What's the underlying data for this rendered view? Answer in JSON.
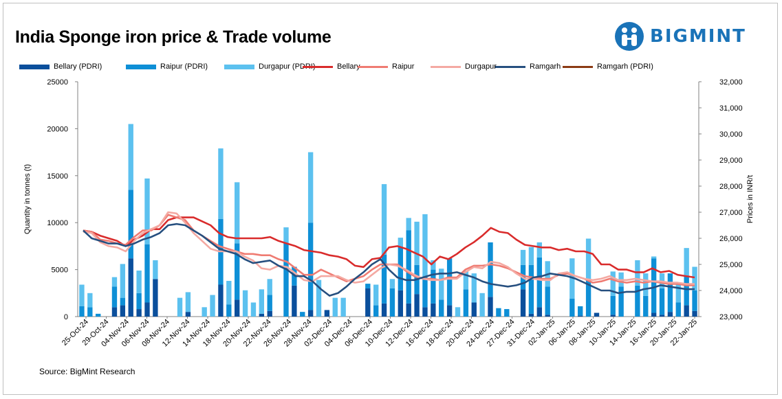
{
  "title": "India Sponge iron price & Trade volume",
  "brand": "BIGMINT",
  "source": "Source: BigMint Research",
  "chart_data": {
    "type": "bar+line",
    "title": "India Sponge iron price & Trade volume",
    "ylabel": "Quantity in tonnes (t)",
    "y2label": "Prices in INR/t",
    "ylim": [
      0,
      25000
    ],
    "y2lim": [
      23000,
      32000
    ],
    "y_ticks": [
      "0",
      "5000",
      "10000",
      "15000",
      "20000",
      "25000"
    ],
    "y2_ticks": [
      "23,000",
      "24,000",
      "25,000",
      "26,000",
      "27,000",
      "28,000",
      "29,000",
      "30,000",
      "31,000",
      "32,000"
    ],
    "x_tick_labels": [
      "25-Oct-24",
      "29-Oct-24",
      "04-Nov-24",
      "06-Nov-24",
      "08-Nov-24",
      "12-Nov-24",
      "14-Nov-24",
      "18-Nov-24",
      "20-Nov-24",
      "22-Nov-24",
      "26-Nov-24",
      "28-Nov-24",
      "02-Dec-24",
      "04-Dec-24",
      "06-Dec-24",
      "10-Dec-24",
      "12-Dec-24",
      "16-Dec-24",
      "18-Dec-24",
      "20-Dec-24",
      "24-Dec-24",
      "27-Dec-24",
      "31-Dec-24",
      "02-Jan-25",
      "06-Jan-25",
      "08-Jan-25",
      "10-Jan-25",
      "14-Jan-25",
      "16-Jan-25",
      "20-Jan-25",
      "22-Jan-25"
    ],
    "bar_series": [
      {
        "name": "Bellary (PDRI)",
        "color": "#0b4f9c",
        "values": [
          0,
          0,
          0,
          0,
          1000,
          1200,
          6200,
          800,
          1500,
          4000,
          0,
          0,
          0,
          500,
          0,
          0,
          0,
          3400,
          0,
          1800,
          0,
          0,
          300,
          600,
          0,
          0,
          3300,
          0,
          700,
          0,
          700,
          0,
          0,
          0,
          0,
          3000,
          0,
          1400,
          0,
          2800,
          1400,
          2400,
          1000,
          1400,
          0,
          1200,
          0,
          0,
          1500,
          0,
          2100,
          0,
          0,
          0,
          2900,
          300,
          1000,
          200,
          0,
          0,
          0,
          100,
          0,
          400,
          0,
          200,
          0,
          0,
          0,
          0,
          400,
          200,
          500,
          0,
          1200,
          600
        ]
      },
      {
        "name": "Raipur (PDRI)",
        "color": "#0e8fd6",
        "values": [
          1100,
          1000,
          300,
          0,
          2200,
          800,
          7300,
          1700,
          6200,
          0,
          0,
          0,
          0,
          0,
          0,
          0,
          0,
          7000,
          1300,
          6000,
          0,
          0,
          0,
          1700,
          0,
          7800,
          2000,
          500,
          9300,
          0,
          0,
          0,
          0,
          0,
          0,
          500,
          1200,
          5200,
          3000,
          4600,
          7800,
          3100,
          3200,
          3600,
          1800,
          5000,
          0,
          2900,
          0,
          0,
          5800,
          900,
          800,
          0,
          2600,
          5200,
          5300,
          3000,
          0,
          0,
          1900,
          1000,
          4000,
          0,
          0,
          2000,
          3200,
          0,
          3300,
          2200,
          5800,
          2800,
          4100,
          1500,
          3100,
          2200
        ]
      },
      {
        "name": "Durgapur (PDRI)",
        "color": "#5cc1ef",
        "values": [
          2300,
          1500,
          0,
          0,
          1000,
          3600,
          7000,
          2400,
          7000,
          2000,
          0,
          0,
          2000,
          2100,
          0,
          1000,
          2300,
          7500,
          2500,
          6500,
          2800,
          1500,
          2600,
          1700,
          0,
          1700,
          0,
          0,
          7500,
          3900,
          0,
          2000,
          2000,
          0,
          0,
          0,
          2200,
          7500,
          1000,
          1000,
          1300,
          4600,
          6700,
          1000,
          3300,
          0,
          1000,
          2000,
          3100,
          2500,
          0,
          0,
          0,
          0,
          1600,
          1900,
          1600,
          2700,
          0,
          0,
          4300,
          0,
          4300,
          0,
          0,
          2600,
          1500,
          0,
          2700,
          2400,
          200,
          1600,
          0,
          2000,
          3000,
          2500
        ]
      }
    ],
    "line_series": [
      {
        "name": "Bellary",
        "color": "#d92b2b",
        "values": [
          26300,
          26250,
          26100,
          26000,
          25900,
          25700,
          25950,
          26100,
          26350,
          26350,
          26700,
          26800,
          26800,
          26800,
          26650,
          26500,
          26200,
          26050,
          26000,
          26000,
          26000,
          26000,
          26050,
          25900,
          25800,
          25700,
          25550,
          25500,
          25450,
          25350,
          25300,
          25200,
          24950,
          24900,
          25200,
          25250,
          25650,
          25700,
          25600,
          25450,
          25300,
          25000,
          25300,
          25200,
          25400,
          25650,
          25850,
          26100,
          26400,
          26250,
          26200,
          25950,
          25750,
          25700,
          25650,
          25650,
          25550,
          25600,
          25500,
          25500,
          25400,
          25000,
          25000,
          24800,
          24800,
          24700,
          24700,
          24850,
          24700,
          24750,
          24600,
          24550,
          24500
        ]
      },
      {
        "name": "Raipur",
        "color": "#ef7b72",
        "values": [
          26300,
          26250,
          25950,
          25900,
          25800,
          25750,
          26050,
          26300,
          26300,
          26500,
          26900,
          26800,
          26700,
          26300,
          26100,
          25900,
          25700,
          25600,
          25500,
          25400,
          25400,
          25350,
          25350,
          25200,
          25100,
          24850,
          24600,
          24600,
          24800,
          24650,
          24500,
          24350,
          24450,
          24550,
          24800,
          25000,
          25000,
          25000,
          24750,
          24550,
          24450,
          24450,
          24400,
          24500,
          24500,
          24800,
          24950,
          24950,
          25000,
          24950,
          24850,
          24700,
          24550,
          24500,
          24450,
          24450,
          24600,
          24650,
          24550,
          24450,
          24300,
          24350,
          24450,
          24350,
          24300,
          24350,
          24300,
          24350,
          24300,
          24250,
          24250,
          24200,
          24200
        ]
      },
      {
        "name": "Durgapur",
        "color": "#f4a9a2",
        "values": [
          26250,
          26200,
          25850,
          25700,
          25650,
          25500,
          25900,
          26200,
          26350,
          26500,
          27000,
          26950,
          26600,
          26200,
          25900,
          25600,
          25500,
          25500,
          25500,
          25300,
          25150,
          24850,
          24800,
          24950,
          24900,
          24650,
          24400,
          24350,
          24550,
          24550,
          24550,
          24400,
          24300,
          24350,
          24600,
          24850,
          25000,
          24950,
          24800,
          24600,
          24450,
          24400,
          24400,
          24450,
          24450,
          24700,
          24900,
          24850,
          25100,
          25050,
          24900,
          24650,
          24450,
          24450,
          24400,
          24400,
          24650,
          24700,
          24550,
          24450,
          24400,
          24450,
          24550,
          24400,
          24400,
          24450,
          24400,
          24350,
          24350,
          24300,
          24300,
          24250,
          24250
        ]
      },
      {
        "name": "Ramgarh",
        "color": "#264f7f",
        "values": [
          26300,
          26000,
          25900,
          25800,
          25800,
          25700,
          25800,
          25950,
          26050,
          26200,
          26500,
          26550,
          26500,
          26300,
          26100,
          25850,
          25600,
          25500,
          25400,
          25200,
          25050,
          25100,
          25150,
          24950,
          24800,
          24550,
          24550,
          24350,
          24050,
          23800,
          23900,
          24150,
          24450,
          24700,
          25000,
          25200,
          24800,
          24500,
          24400,
          24400,
          24500,
          24600,
          24650,
          24650,
          24700,
          24600,
          24500,
          24350,
          24250,
          24200,
          24150,
          24200,
          24300,
          24500,
          24550,
          24650,
          24600,
          24550,
          24450,
          24300,
          24150,
          24000,
          24000,
          23900,
          23950,
          23950,
          24050,
          24100,
          24200,
          24150,
          24100,
          24050,
          24050
        ]
      },
      {
        "name": "Ramgarh (PDRI)",
        "color": "#8b3a14",
        "values": []
      }
    ]
  }
}
